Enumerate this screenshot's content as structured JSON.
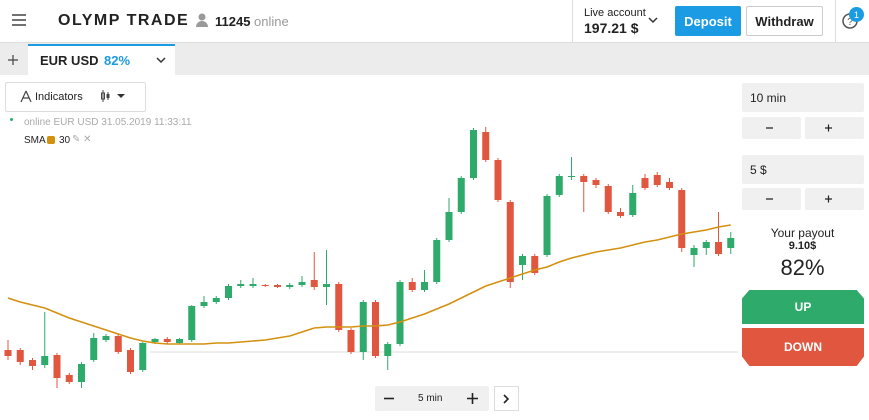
{
  "header": {
    "logo": "OLYMP TRADE",
    "online_count": "11245",
    "online_label": "online",
    "account_label": "Live account",
    "balance": "197.21 $",
    "deposit": "Deposit",
    "withdraw": "Withdraw",
    "notifications": "1"
  },
  "tab": {
    "asset": "EUR USD",
    "payout": "82%"
  },
  "toolbar": {
    "indicators": "Indicators"
  },
  "chart_info": {
    "status": "online EUR USD 31.05.2019 11:33:11",
    "indicator": "SMA",
    "period": "30"
  },
  "zoom": {
    "label": "5 min"
  },
  "trade_panel": {
    "duration": "10 min",
    "amount": "5 $",
    "payout_label": "Your payout",
    "payout_amount": "9.10$",
    "payout_percent": "82%",
    "up": "UP",
    "down": "DOWN"
  },
  "chart_data": {
    "type": "candlestick",
    "ylim": [
      0,
      290
    ],
    "ohlc": [
      [
        50,
        60,
        40,
        44
      ],
      [
        50,
        52,
        35,
        38
      ],
      [
        40,
        42,
        30,
        34
      ],
      [
        35,
        88,
        32,
        44
      ],
      [
        45,
        47,
        12,
        22
      ],
      [
        25,
        27,
        16,
        18
      ],
      [
        18,
        38,
        12,
        36
      ],
      [
        40,
        67,
        38,
        62
      ],
      [
        60,
        66,
        58,
        64
      ],
      [
        64,
        66,
        46,
        48
      ],
      [
        50,
        52,
        26,
        28
      ],
      [
        30,
        58,
        28,
        57
      ],
      [
        58,
        62,
        56,
        61
      ],
      [
        61,
        63,
        56,
        58
      ],
      [
        57,
        62,
        56,
        61
      ],
      [
        60,
        95,
        58,
        94
      ],
      [
        94,
        104,
        92,
        98
      ],
      [
        98,
        104,
        96,
        102
      ],
      [
        102,
        116,
        100,
        114
      ],
      [
        114,
        120,
        112,
        116
      ],
      [
        114,
        122,
        112,
        116
      ],
      [
        115,
        116,
        113,
        114
      ],
      [
        115,
        116,
        112,
        113
      ],
      [
        113,
        117,
        111,
        115
      ],
      [
        115,
        124,
        113,
        118
      ],
      [
        120,
        148,
        110,
        113
      ],
      [
        113,
        150,
        95,
        116
      ],
      [
        116,
        118,
        68,
        70
      ],
      [
        70,
        72,
        46,
        48
      ],
      [
        48,
        100,
        40,
        98
      ],
      [
        98,
        100,
        42,
        44
      ],
      [
        44,
        58,
        30,
        56
      ],
      [
        56,
        120,
        54,
        118
      ],
      [
        118,
        122,
        108,
        110
      ],
      [
        110,
        130,
        108,
        118
      ],
      [
        118,
        162,
        116,
        160
      ],
      [
        160,
        202,
        158,
        188
      ],
      [
        188,
        224,
        186,
        222
      ],
      [
        222,
        272,
        220,
        270
      ],
      [
        268,
        273,
        238,
        240
      ],
      [
        240,
        242,
        198,
        200
      ],
      [
        198,
        200,
        112,
        118
      ],
      [
        135,
        146,
        120,
        144
      ],
      [
        144,
        146,
        125,
        127
      ],
      [
        145,
        206,
        143,
        204
      ],
      [
        205,
        226,
        203,
        224
      ],
      [
        224,
        243,
        220,
        224
      ],
      [
        224,
        226,
        188,
        218
      ],
      [
        220,
        222,
        212,
        215
      ],
      [
        214,
        216,
        186,
        188
      ],
      [
        188,
        192,
        182,
        184
      ],
      [
        185,
        215,
        183,
        207
      ],
      [
        222,
        226,
        210,
        212
      ],
      [
        225,
        228,
        213,
        215
      ],
      [
        218,
        222,
        210,
        212
      ],
      [
        210,
        212,
        148,
        152
      ],
      [
        145,
        155,
        133,
        152
      ],
      [
        152,
        160,
        145,
        158
      ],
      [
        158,
        188,
        144,
        146
      ],
      [
        152,
        168,
        146,
        162
      ]
    ],
    "sma": [
      102,
      98,
      95,
      92,
      87,
      82,
      78,
      74,
      70,
      66,
      62,
      59,
      57,
      56,
      56,
      56,
      56,
      57,
      57,
      58,
      59,
      60,
      62,
      64,
      68,
      72,
      73,
      73,
      73,
      74,
      74,
      75,
      78,
      82,
      86,
      91,
      96,
      102,
      108,
      114,
      118,
      122,
      126,
      130,
      133,
      138,
      142,
      145,
      148,
      150,
      152,
      155,
      158,
      160,
      163,
      166,
      168,
      170,
      173,
      175
    ],
    "up_color": "#2eaa6a",
    "down_color": "#e0563f",
    "sma_color": "#d4900f"
  }
}
